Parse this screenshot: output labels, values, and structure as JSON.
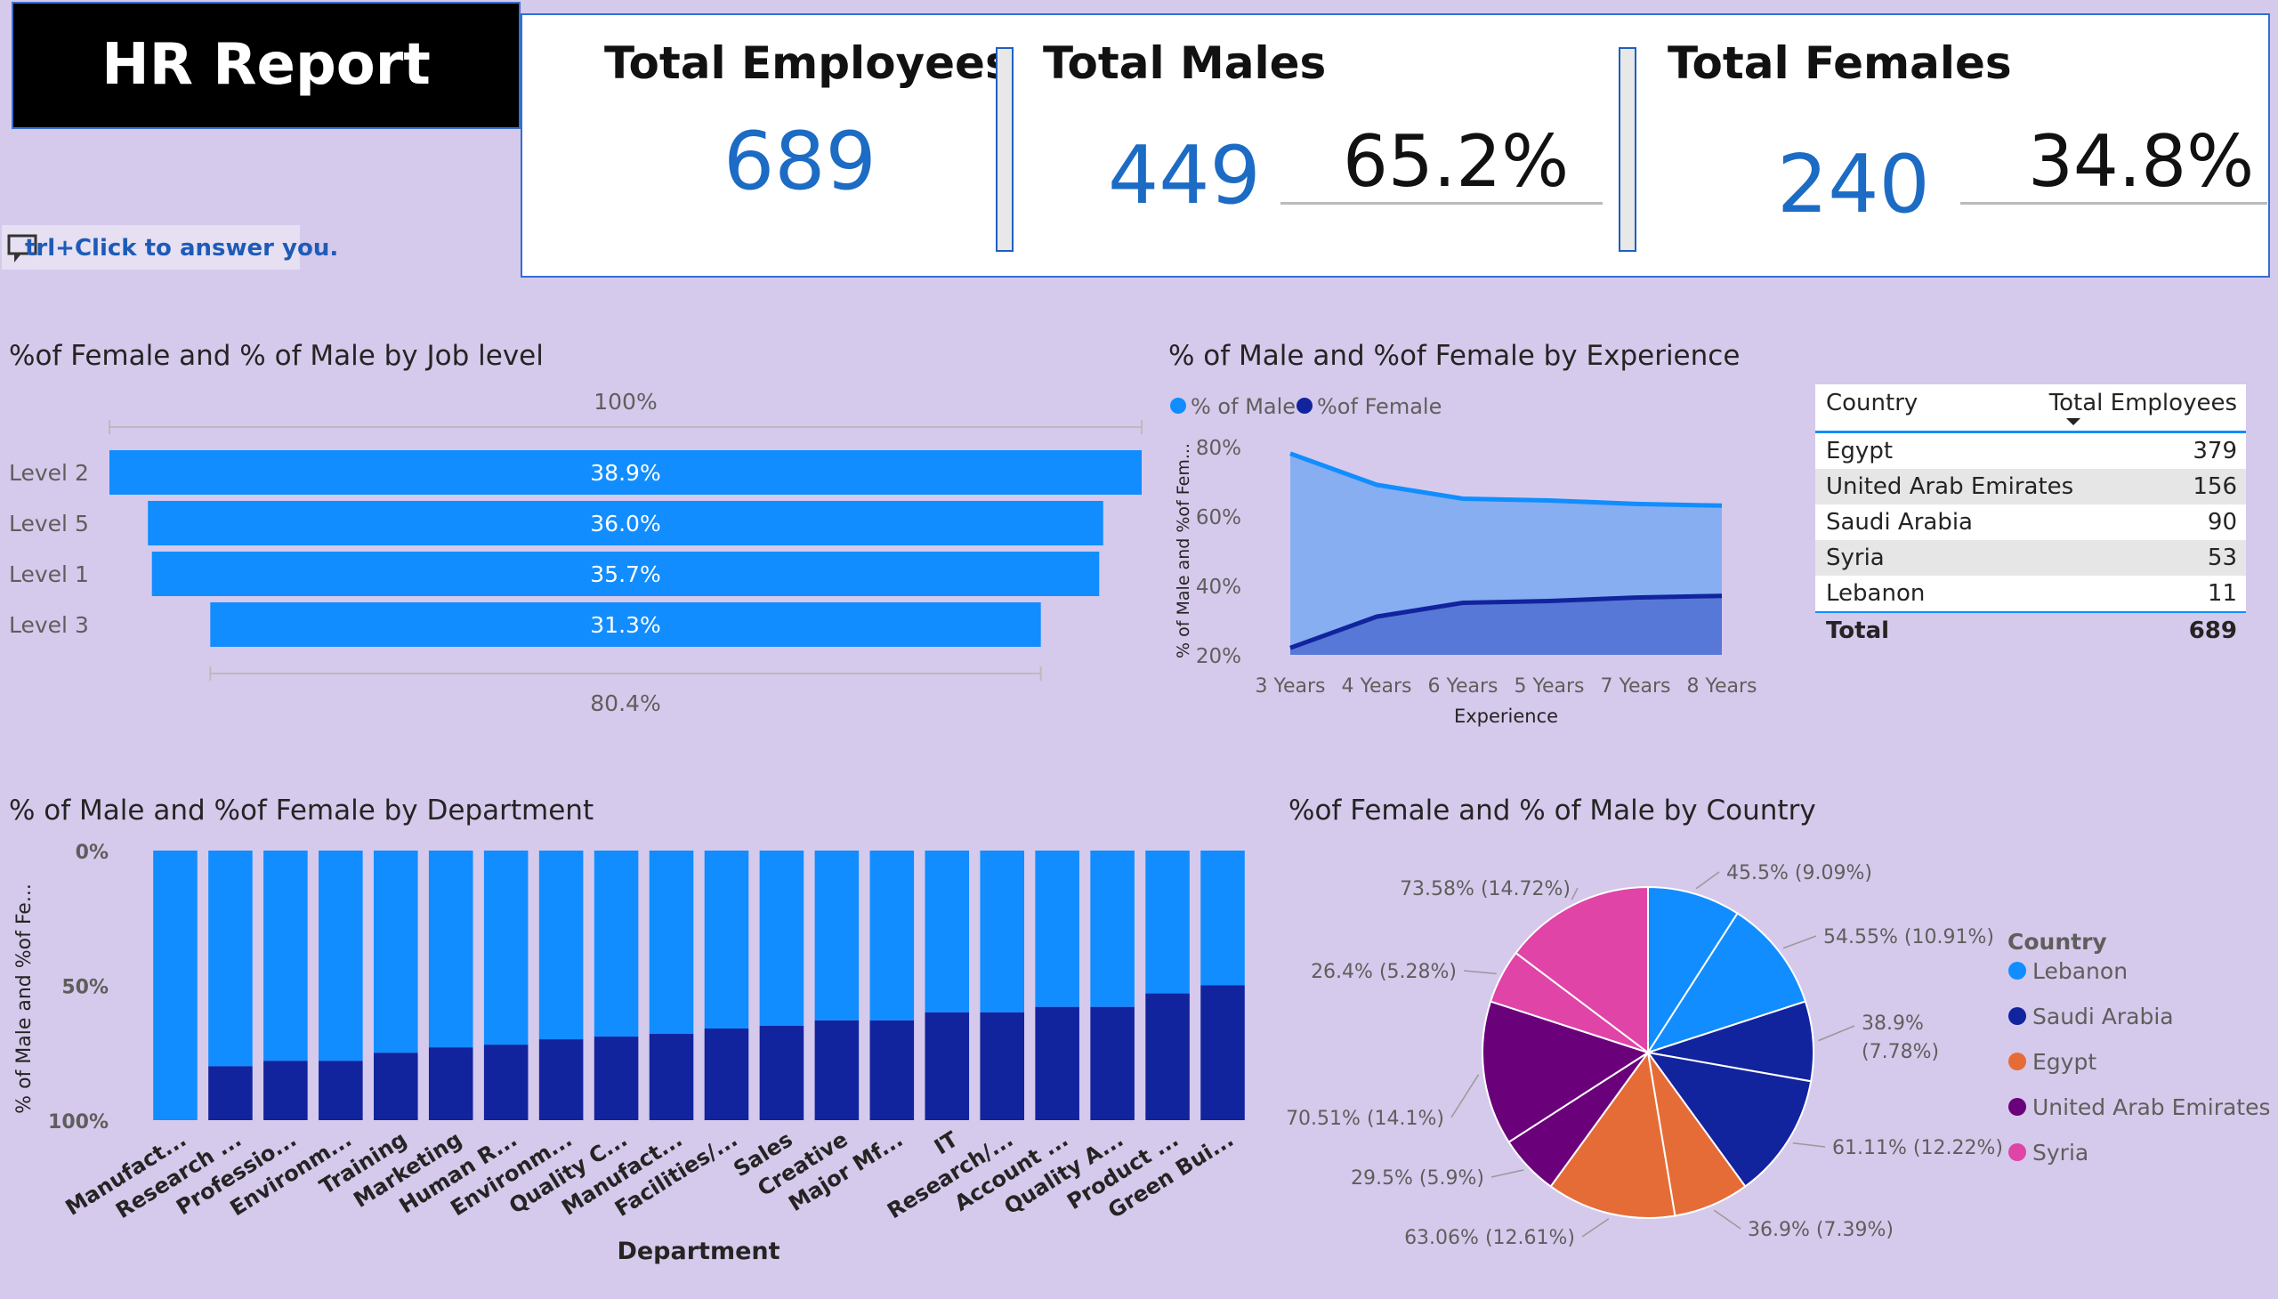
{
  "header": {
    "title": "HR Report",
    "qa_hint": "trl+Click to answer you."
  },
  "kpis": {
    "total_employees_label": "Total Employees",
    "total_employees_value": "689",
    "total_males_label": "Total Males",
    "total_males_value": "449",
    "total_males_pct": "65.2%",
    "total_females_label": "Total Females",
    "total_females_value": "240",
    "total_females_pct": "34.8%"
  },
  "colors": {
    "male": "#118DFF",
    "female": "#12239E",
    "area_male": "#86AEF1",
    "area_female": "#5778D6",
    "kpi_number": "#1C6BC4",
    "orange": "#E66C37",
    "purple": "#6B007B",
    "pink": "#E044A7"
  },
  "chart_data": [
    {
      "type": "bar",
      "subtype": "funnel",
      "title": "%of Female and % of Male by Job level",
      "categories": [
        "Level 2",
        "Level 5",
        "Level 1",
        "Level 3"
      ],
      "values": [
        38.9,
        36.0,
        35.7,
        31.3
      ],
      "labels": [
        "38.9%",
        "36.0%",
        "35.7%",
        "31.3%"
      ],
      "top_annotation": "100%",
      "bottom_annotation": "80.4%"
    },
    {
      "type": "area",
      "title": "% of Male and %of Female by Experience",
      "x": [
        "3 Years",
        "4 Years",
        "6 Years",
        "5 Years",
        "7 Years",
        "8 Years"
      ],
      "series": [
        {
          "name": "% of Male",
          "values": [
            78,
            69,
            65,
            64.5,
            63.5,
            63
          ]
        },
        {
          "name": "%of Female",
          "values": [
            22,
            31,
            35,
            35.5,
            36.5,
            37
          ]
        }
      ],
      "xlabel": "Experience",
      "ylabel": "% of Male and %of Fem...",
      "yticks": [
        "20%",
        "40%",
        "60%",
        "80%"
      ],
      "ylim": [
        20,
        80
      ],
      "legend": "top-left"
    },
    {
      "type": "table",
      "columns": [
        "Country",
        "Total Employees"
      ],
      "rows": [
        {
          "country": "Egypt",
          "total": "379"
        },
        {
          "country": "United Arab Emirates",
          "total": "156"
        },
        {
          "country": "Saudi Arabia",
          "total": "90"
        },
        {
          "country": "Syria",
          "total": "53"
        },
        {
          "country": "Lebanon",
          "total": "11"
        }
      ],
      "total_label": "Total",
      "total_value": "689"
    },
    {
      "type": "bar",
      "subtype": "stacked-100",
      "title": "% of Male and %of Female by Department",
      "categories": [
        "Manufact...",
        "Research ...",
        "Professio...",
        "Environm...",
        "Training",
        "Marketing",
        "Human R...",
        "Environm...",
        "Quality C...",
        "Manufact...",
        "Facilities/...",
        "Sales",
        "Creative",
        "Major Mf...",
        "IT",
        "Research/...",
        "Account ...",
        "Quality A...",
        "Product ...",
        "Green Bui..."
      ],
      "series": [
        {
          "name": "% of Male",
          "values": [
            100,
            80,
            78,
            78,
            75,
            73,
            72,
            70,
            69,
            68,
            66,
            65,
            63,
            63,
            60,
            60,
            58,
            58,
            53,
            50
          ]
        },
        {
          "name": "%of Female",
          "values": [
            0,
            20,
            22,
            22,
            25,
            27,
            28,
            30,
            31,
            32,
            34,
            35,
            37,
            37,
            40,
            40,
            42,
            42,
            47,
            50
          ]
        }
      ],
      "xlabel": "Department",
      "ylabel": "% of Male and %of Fe...",
      "yticks": [
        "0%",
        "50%",
        "100%"
      ],
      "ylim": [
        0,
        100
      ]
    },
    {
      "type": "pie",
      "title": "%of Female and % of Male by Country",
      "legend_title": "Country",
      "legend": [
        {
          "name": "Lebanon",
          "color": "#118DFF"
        },
        {
          "name": "Saudi Arabia",
          "color": "#12239E"
        },
        {
          "name": "Egypt",
          "color": "#E66C37"
        },
        {
          "name": "United Arab Emirates",
          "color": "#6B007B"
        },
        {
          "name": "Syria",
          "color": "#E044A7"
        }
      ],
      "slices": [
        {
          "country": "Lebanon",
          "value": 9.09,
          "label": "45.5% (9.09%)",
          "color": "#118DFF"
        },
        {
          "country": "Lebanon",
          "value": 10.91,
          "label": "54.55% (10.91%)",
          "color": "#118DFF"
        },
        {
          "country": "Saudi Arabia",
          "value": 7.78,
          "label": "38.9% (7.78%)",
          "color": "#12239E"
        },
        {
          "country": "Saudi Arabia",
          "value": 12.22,
          "label": "61.11% (12.22%)",
          "color": "#12239E"
        },
        {
          "country": "Egypt",
          "value": 7.39,
          "label": "36.9% (7.39%)",
          "color": "#E66C37"
        },
        {
          "country": "Egypt",
          "value": 12.61,
          "label": "63.06% (12.61%)",
          "color": "#E66C37"
        },
        {
          "country": "United Arab Emirates",
          "value": 5.9,
          "label": "29.5% (5.9%)",
          "color": "#6B007B"
        },
        {
          "country": "United Arab Emirates",
          "value": 14.1,
          "label": "70.51% (14.1%)",
          "color": "#6B007B"
        },
        {
          "country": "Syria",
          "value": 5.28,
          "label": "26.4% (5.28%)",
          "color": "#E044A7"
        },
        {
          "country": "Syria",
          "value": 14.72,
          "label": "73.58% (14.72%)",
          "color": "#E044A7"
        }
      ]
    }
  ]
}
